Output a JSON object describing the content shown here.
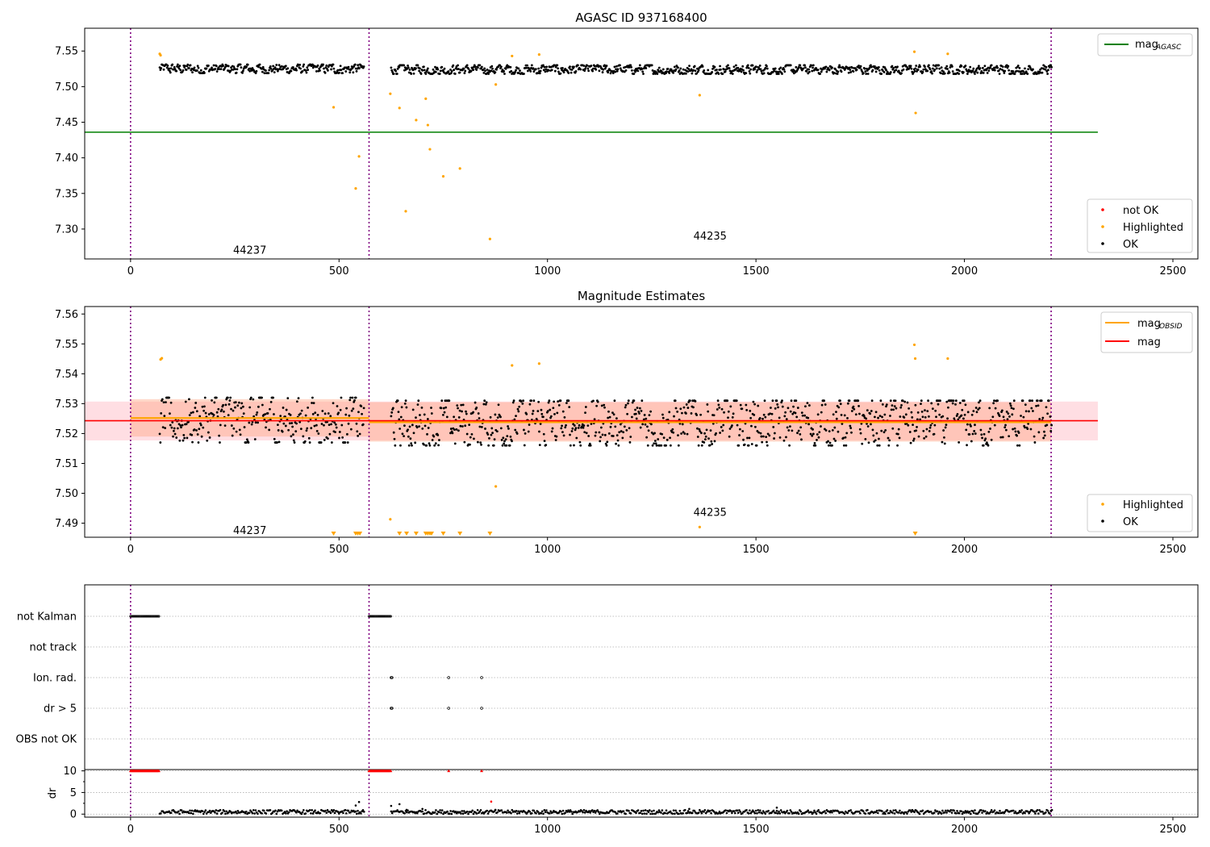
{
  "chart_data": [
    {
      "type": "scatter",
      "title": "AGASC ID 937168400",
      "xlim": [
        -110,
        2560
      ],
      "ylim": [
        7.258,
        7.582
      ],
      "xticks": [
        0,
        500,
        1000,
        1500,
        2000,
        2500
      ],
      "yticks": [
        7.3,
        7.35,
        7.4,
        7.45,
        7.5,
        7.55
      ],
      "ytick_labels": [
        "7.30",
        "7.35",
        "7.40",
        "7.45",
        "7.50",
        "7.55"
      ],
      "grid": false,
      "obs_boundaries": [
        0,
        572,
        2208
      ],
      "obs_labels": [
        {
          "text": "44237",
          "x": 286,
          "y": 7.27
        },
        {
          "text": "44235",
          "x": 1390,
          "y": 7.29
        }
      ],
      "hline": {
        "name": "mag",
        "sub": "AGASC",
        "y": 7.436,
        "x": [
          -110,
          2320
        ],
        "color": "#008000"
      },
      "ok_series": {
        "name": "OK",
        "color": "#000000",
        "segments": [
          {
            "x": [
              70,
              560
            ],
            "base": 7.525,
            "amp": 0.006
          },
          {
            "x": [
              625,
              2210
            ],
            "base": 7.524,
            "amp": 0.006
          }
        ]
      },
      "highlighted": {
        "name": "Highlighted",
        "color": "#ffa500",
        "points": [
          [
            70,
            7.546
          ],
          [
            72,
            7.544
          ],
          [
            487,
            7.471
          ],
          [
            540,
            7.357
          ],
          [
            548,
            7.402
          ],
          [
            623,
            7.49
          ],
          [
            645,
            7.47
          ],
          [
            660,
            7.325
          ],
          [
            685,
            7.453
          ],
          [
            708,
            7.483
          ],
          [
            713,
            7.446
          ],
          [
            718,
            7.412
          ],
          [
            750,
            7.374
          ],
          [
            790,
            7.385
          ],
          [
            862,
            7.286
          ],
          [
            876,
            7.503
          ],
          [
            915,
            7.543
          ],
          [
            980,
            7.545
          ],
          [
            1365,
            7.488
          ],
          [
            1880,
            7.549
          ],
          [
            1883,
            7.463
          ],
          [
            1960,
            7.546
          ]
        ]
      },
      "legend_hline": {
        "entries": [
          "mag"
        ],
        "sub": "AGASC",
        "position": "upper right"
      },
      "legend_points": {
        "entries": [
          "not OK",
          "Highlighted",
          "OK"
        ],
        "colors": [
          "#ff0000",
          "#ffa500",
          "#000000"
        ],
        "position": "lower right"
      }
    },
    {
      "type": "scatter",
      "title": "Magnitude Estimates",
      "xlim": [
        -110,
        2560
      ],
      "ylim": [
        7.4853,
        7.5625
      ],
      "xticks": [
        0,
        500,
        1000,
        1500,
        2000,
        2500
      ],
      "yticks": [
        7.49,
        7.5,
        7.51,
        7.52,
        7.53,
        7.54,
        7.55,
        7.56
      ],
      "ytick_labels": [
        "7.49",
        "7.50",
        "7.51",
        "7.52",
        "7.53",
        "7.54",
        "7.55",
        "7.56"
      ],
      "grid": false,
      "obs_boundaries": [
        0,
        572,
        2208
      ],
      "obs_labels": [
        {
          "text": "44237",
          "x": 286,
          "y": 7.4875
        },
        {
          "text": "44235",
          "x": 1390,
          "y": 7.4935
        }
      ],
      "mag_line": {
        "name": "mag",
        "y": 7.5243,
        "band": [
          7.5177,
          7.5307
        ],
        "x": [
          -110,
          2320
        ],
        "color": "#ff0000"
      },
      "mag_obsid": {
        "name": "mag",
        "sub": "OBSID",
        "color": "#ffa500",
        "segments": [
          {
            "x": [
              0,
              572
            ],
            "y": 7.5252,
            "band": [
              7.519,
              7.5315
            ]
          },
          {
            "x": [
              572,
              2208
            ],
            "y": 7.5238,
            "band": [
              7.5173,
              7.5305
            ]
          }
        ]
      },
      "ok_series": {
        "name": "OK",
        "color": "#000000",
        "segments": [
          {
            "x": [
              70,
              560
            ],
            "base": 7.5245,
            "amp": 0.0075
          },
          {
            "x": [
              625,
              2210
            ],
            "base": 7.5235,
            "amp": 0.0075
          }
        ]
      },
      "highlighted": {
        "name": "Highlighted",
        "color": "#ffa500",
        "points": [
          [
            72,
            7.5448
          ],
          [
            75,
            7.5452
          ],
          [
            623,
            7.4913
          ],
          [
            876,
            7.5023
          ],
          [
            915,
            7.5428
          ],
          [
            980,
            7.5434
          ],
          [
            1365,
            7.4887
          ],
          [
            1880,
            7.5497
          ],
          [
            1882,
            7.5451
          ],
          [
            1960,
            7.5451
          ]
        ],
        "offscale_x": [
          487,
          540,
          545,
          550,
          645,
          662,
          685,
          708,
          713,
          718,
          722,
          750,
          790,
          862,
          1882
        ]
      },
      "legend_lines": {
        "entries": [
          "mag",
          "mag"
        ],
        "sub": [
          "OBSID",
          ""
        ],
        "colors": [
          "#ffa500",
          "#ff0000"
        ],
        "position": "upper right"
      },
      "legend_points": {
        "entries": [
          "Highlighted",
          "OK"
        ],
        "colors": [
          "#ffa500",
          "#000000"
        ],
        "position": "lower right"
      }
    },
    {
      "type": "scatter",
      "xlim": [
        -110,
        2560
      ],
      "xticks": [
        0,
        500,
        1000,
        1500,
        2000,
        2500
      ],
      "flag_rows": [
        "not Kalman",
        "not track",
        "Ion. rad.",
        "dr > 5",
        "OBS not OK"
      ],
      "flags": {
        "not Kalman": [
          [
            0,
            68
          ],
          [
            572,
            625
          ]
        ],
        "not track": [],
        "Ion. rad.": [
          [
            625,
            625
          ],
          [
            627,
            627
          ],
          [
            763,
            763
          ],
          [
            842,
            842
          ]
        ],
        "dr > 5": [
          [
            625,
            625
          ],
          [
            627,
            627
          ],
          [
            763,
            763
          ],
          [
            842,
            842
          ]
        ]
      },
      "obs_boundaries": [
        0,
        572,
        2208
      ],
      "dr": {
        "ylabel": "dr",
        "yticks": [
          0,
          5,
          10
        ],
        "ytick_labels": [
          "0",
          "5",
          "10"
        ],
        "ylim": [
          -0.7,
          10.3
        ],
        "capped_value": 10,
        "capped_x": [
          [
            0,
            68
          ],
          [
            572,
            625
          ],
          [
            763,
            763
          ],
          [
            842,
            842
          ]
        ],
        "baseline": 0.5,
        "extra_points": [
          [
            540,
            2.0
          ],
          [
            548,
            2.8
          ],
          [
            625,
            1.9
          ],
          [
            645,
            2.3
          ],
          [
            662,
            1.0
          ],
          [
            700,
            1.2
          ],
          [
            865,
            2.9
          ],
          [
            875,
            1.0
          ],
          [
            1340,
            1.2
          ],
          [
            1550,
            1.5
          ]
        ]
      }
    }
  ]
}
